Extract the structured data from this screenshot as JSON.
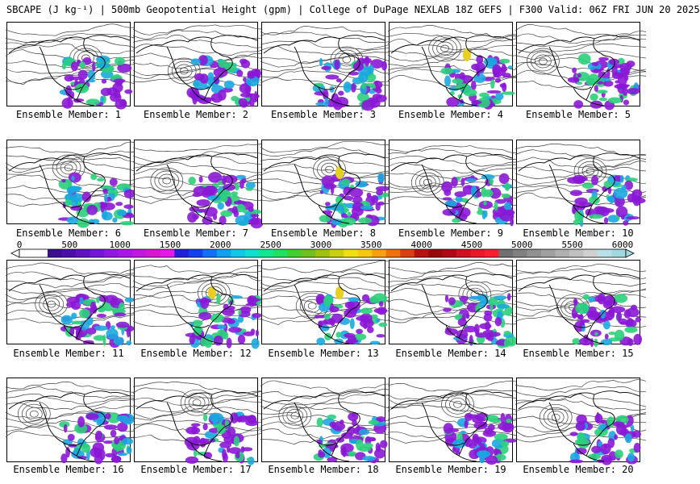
{
  "header": {
    "title": "SBCAPE (J kg⁻¹) | 500mb Geopotential Height (gpm) | College of DuPage NEXLAB 18Z GEFS | F300 Valid: 06Z FRI JUN 20 2025"
  },
  "member_prefix": "Ensemble Member: ",
  "members": [
    "1",
    "2",
    "3",
    "4",
    "5",
    "6",
    "7",
    "8",
    "9",
    "10",
    "11",
    "12",
    "13",
    "14",
    "15",
    "16",
    "17",
    "18",
    "19",
    "20"
  ],
  "colorbar": {
    "ticks": [
      "0",
      "500",
      "1000",
      "1500",
      "2000",
      "2500",
      "3000",
      "3500",
      "4000",
      "4500",
      "5000",
      "5500",
      "6000"
    ],
    "range": [
      0,
      6000
    ],
    "colors": [
      "#ffffff",
      "#ffffff",
      "#3b0e8f",
      "#4a0fa8",
      "#5e12c0",
      "#7414d8",
      "#9016e0",
      "#a817e8",
      "#c018e0",
      "#d818d0",
      "#e818e8",
      "#2020d8",
      "#1040f0",
      "#1070f8",
      "#10a0f0",
      "#10c8e8",
      "#10e0d0",
      "#10e890",
      "#20e060",
      "#40d030",
      "#70c020",
      "#a0c010",
      "#c8d010",
      "#f0e010",
      "#f8c810",
      "#f8a010",
      "#f07010",
      "#d84010",
      "#b81010",
      "#980808",
      "#b00818",
      "#d01020",
      "#e81828",
      "#f82030",
      "#707070",
      "#808080",
      "#909090",
      "#a0a0a0",
      "#b0b0b0",
      "#c0c0c0",
      "#d0d0d0",
      "#b8e0e8",
      "#a0d8e0"
    ]
  },
  "colors": {
    "cape_low": "#8b17d6",
    "cape_mid": "#1aa7e0",
    "cape_high": "#2ad07a",
    "cape_very_high": "#e8d020",
    "contour": "#404040",
    "coast": "#000000"
  }
}
